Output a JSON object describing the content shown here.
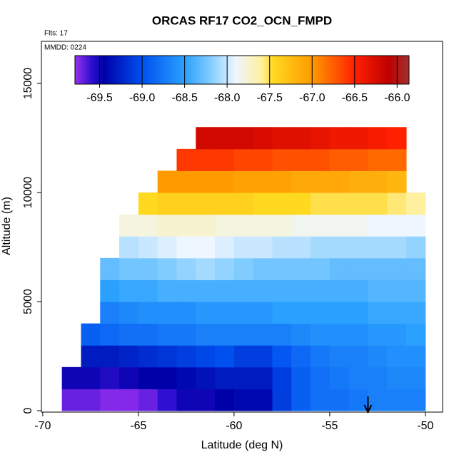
{
  "chart_data": {
    "type": "heatmap",
    "title": "ORCAS RF17 CO2_OCN_FMPD",
    "subtitle": "Flts: 17",
    "annotation": "MMDD: 0224",
    "x_label": "Latitude (deg N)",
    "y_label": "Altitude (m)",
    "xlim": [
      -70.07,
      -49.1
    ],
    "ylim": [
      -65,
      16930
    ],
    "xticks": [
      -70,
      -65,
      -60,
      -55,
      -50
    ],
    "yticks": [
      0,
      5000,
      10000,
      15000
    ],
    "x_edges": [
      -69,
      -68,
      -67,
      -66,
      -65,
      -64,
      -63,
      -62,
      -61,
      -60,
      -59,
      -58,
      -57,
      -56,
      -55,
      -54,
      -53,
      -52,
      -51,
      -50
    ],
    "y_edges": [
      0,
      1000,
      2000,
      3000,
      4000,
      5000,
      6000,
      7000,
      8000,
      9000,
      10000,
      11000,
      12000,
      13000
    ],
    "values": [
      [
        -69.7,
        -69.7,
        -69.75,
        -69.75,
        -69.7,
        -69.6,
        -69.5,
        -69.5,
        -69.45,
        -69.4,
        -69.4,
        -69.1,
        -68.9,
        -68.8,
        -68.8,
        -68.75,
        -68.7,
        -68.7,
        -68.7
      ],
      [
        -69.5,
        -69.5,
        -69.55,
        -69.5,
        -69.45,
        -69.45,
        -69.4,
        -69.35,
        -69.3,
        -69.3,
        -69.3,
        -69.1,
        -68.9,
        -68.8,
        -68.75,
        -68.7,
        -68.7,
        -68.65,
        -68.65
      ],
      [
        null,
        -69.3,
        -69.3,
        -69.25,
        -69.2,
        -69.15,
        -69.1,
        -69.05,
        -69.0,
        -69.1,
        -69.1,
        -68.95,
        -68.85,
        -68.75,
        -68.7,
        -68.7,
        -68.65,
        -68.6,
        -68.6
      ],
      [
        null,
        -68.9,
        -68.85,
        -68.8,
        -68.8,
        -68.75,
        -68.75,
        -68.7,
        -68.7,
        -68.7,
        -68.7,
        -68.7,
        -68.65,
        -68.6,
        -68.6,
        -68.6,
        -68.55,
        -68.55,
        -68.5
      ],
      [
        null,
        null,
        -68.7,
        -68.65,
        -68.6,
        -68.6,
        -68.6,
        -68.55,
        -68.55,
        -68.55,
        -68.55,
        -68.5,
        -68.5,
        -68.5,
        -68.5,
        -68.5,
        -68.45,
        -68.45,
        -68.45
      ],
      [
        null,
        null,
        -68.5,
        -68.45,
        -68.45,
        -68.4,
        -68.4,
        -68.4,
        -68.4,
        -68.4,
        -68.4,
        -68.4,
        -68.4,
        -68.4,
        -68.4,
        -68.4,
        -68.35,
        -68.35,
        -68.35
      ],
      [
        null,
        null,
        -68.3,
        -68.25,
        -68.25,
        -68.2,
        -68.15,
        -68.1,
        -68.15,
        -68.2,
        -68.25,
        -68.25,
        -68.25,
        -68.25,
        -68.3,
        -68.3,
        -68.3,
        -68.3,
        -68.3
      ],
      [
        null,
        null,
        null,
        -68.05,
        -68.0,
        -67.95,
        -67.9,
        -67.9,
        -67.95,
        -68.0,
        -68.0,
        -68.05,
        -68.05,
        -68.1,
        -68.1,
        -68.1,
        -68.1,
        -68.1,
        -68.15
      ],
      [
        null,
        null,
        null,
        -67.8,
        -67.8,
        -67.75,
        -67.75,
        -67.75,
        -67.8,
        -67.8,
        -67.8,
        -67.8,
        -67.85,
        -67.85,
        -67.85,
        -67.85,
        -67.9,
        -67.9,
        -67.9
      ],
      [
        null,
        null,
        null,
        null,
        -67.45,
        -67.4,
        -67.4,
        -67.4,
        -67.4,
        -67.4,
        -67.45,
        -67.45,
        -67.45,
        -67.5,
        -67.5,
        -67.5,
        -67.5,
        -67.55,
        -67.6
      ],
      [
        null,
        null,
        null,
        null,
        null,
        -67.0,
        -67.0,
        -67.0,
        -67.0,
        -67.05,
        -67.05,
        -67.05,
        -67.1,
        -67.1,
        -67.1,
        -67.15,
        -67.15,
        -67.2,
        null
      ],
      [
        null,
        null,
        null,
        null,
        null,
        null,
        -66.6,
        -66.6,
        -66.6,
        -66.65,
        -66.65,
        -66.7,
        -66.7,
        -66.7,
        -66.75,
        -66.75,
        -66.8,
        -66.8,
        null
      ],
      [
        null,
        null,
        null,
        null,
        null,
        null,
        null,
        -66.2,
        -66.2,
        -66.2,
        -66.25,
        -66.3,
        -66.3,
        -66.35,
        -66.4,
        -66.4,
        -66.45,
        -66.5,
        null
      ]
    ],
    "clim": [
      -69.79,
      -65.86
    ],
    "cticks": [
      -69.5,
      {
        "value": -69.0,
        "label": "-69.0"
      },
      -68.5,
      {
        "value": -68.0,
        "label": "-68.0"
      },
      -67.5,
      {
        "value": -67.0,
        "label": "-67.0"
      },
      -66.5,
      {
        "value": -66.0,
        "label": "-66.0"
      }
    ],
    "colorscale": [
      [
        -69.79,
        "#9a30f0"
      ],
      [
        -69.6,
        "#3010d0"
      ],
      [
        -69.45,
        "#0000a8"
      ],
      [
        -69.0,
        "#0050f0"
      ],
      [
        -68.5,
        "#2aa0ff"
      ],
      [
        -68.2,
        "#80ccff"
      ],
      [
        -67.9,
        "#eef6ff"
      ],
      [
        -67.6,
        "#fff0a0"
      ],
      [
        -67.45,
        "#ffd820"
      ],
      [
        -67.0,
        "#ff9a00"
      ],
      [
        -66.5,
        "#ff2000"
      ],
      [
        -66.1,
        "#c00000"
      ],
      [
        -65.86,
        "#a03030"
      ]
    ],
    "arrow_x": -53
  }
}
